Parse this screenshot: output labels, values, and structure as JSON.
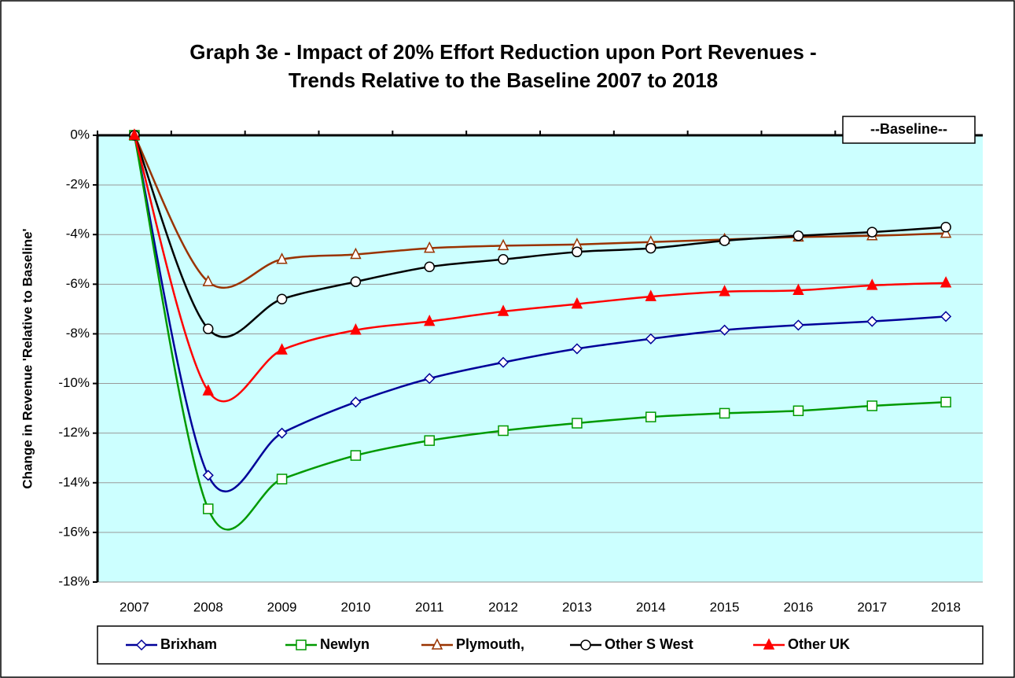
{
  "chart_data": {
    "type": "line",
    "title": [
      "Graph 3e - Impact of 20% Effort Reduction upon Port Revenues -",
      "Trends Relative to the Baseline 2007 to 2018"
    ],
    "y_label": "Change in Revenue 'Relative to Baseline'",
    "annotation": "--Baseline--",
    "categories": [
      "2007",
      "2008",
      "2009",
      "2010",
      "2011",
      "2012",
      "2013",
      "2014",
      "2015",
      "2016",
      "2017",
      "2018"
    ],
    "ylim": [
      -18,
      0
    ],
    "yticks": [
      {
        "value": 0,
        "label": "0%"
      },
      {
        "value": -2,
        "label": "-2%"
      },
      {
        "value": -4,
        "label": "-4%"
      },
      {
        "value": -6,
        "label": "-6%"
      },
      {
        "value": -8,
        "label": "-8%"
      },
      {
        "value": -10,
        "label": "-10%"
      },
      {
        "value": -12,
        "label": "-12%"
      },
      {
        "value": -14,
        "label": "-14%"
      },
      {
        "value": -16,
        "label": "-16%"
      },
      {
        "value": -18,
        "label": "-18%"
      }
    ],
    "grid": true,
    "smooth": true,
    "background": "#ccffff",
    "series": [
      {
        "name": "Brixham",
        "color": "#000099",
        "marker": "diamond",
        "values": [
          0,
          -13.7,
          -12.0,
          -10.75,
          -9.8,
          -9.15,
          -8.6,
          -8.2,
          -7.85,
          -7.65,
          -7.5,
          -7.3
        ]
      },
      {
        "name": "Newlyn",
        "color": "#009900",
        "marker": "square",
        "values": [
          0,
          -15.05,
          -13.85,
          -12.9,
          -12.3,
          -11.9,
          -11.6,
          -11.35,
          -11.2,
          -11.1,
          -10.9,
          -10.75
        ]
      },
      {
        "name": "Plymouth,",
        "color": "#993300",
        "marker": "triangle",
        "values": [
          0,
          -5.9,
          -5.0,
          -4.8,
          -4.55,
          -4.45,
          -4.4,
          -4.3,
          -4.2,
          -4.1,
          -4.05,
          -3.95
        ]
      },
      {
        "name": "Other S West",
        "color": "#000000",
        "marker": "circle",
        "values": [
          0,
          -7.8,
          -6.6,
          -5.9,
          -5.3,
          -5.0,
          -4.7,
          -4.55,
          -4.25,
          -4.05,
          -3.9,
          -3.7
        ]
      },
      {
        "name": "Other UK",
        "color": "#ff0000",
        "marker": "filled-triangle",
        "values": [
          0,
          -10.3,
          -8.65,
          -7.85,
          -7.5,
          -7.1,
          -6.8,
          -6.5,
          -6.3,
          -6.25,
          -6.05,
          -5.95
        ]
      }
    ]
  }
}
